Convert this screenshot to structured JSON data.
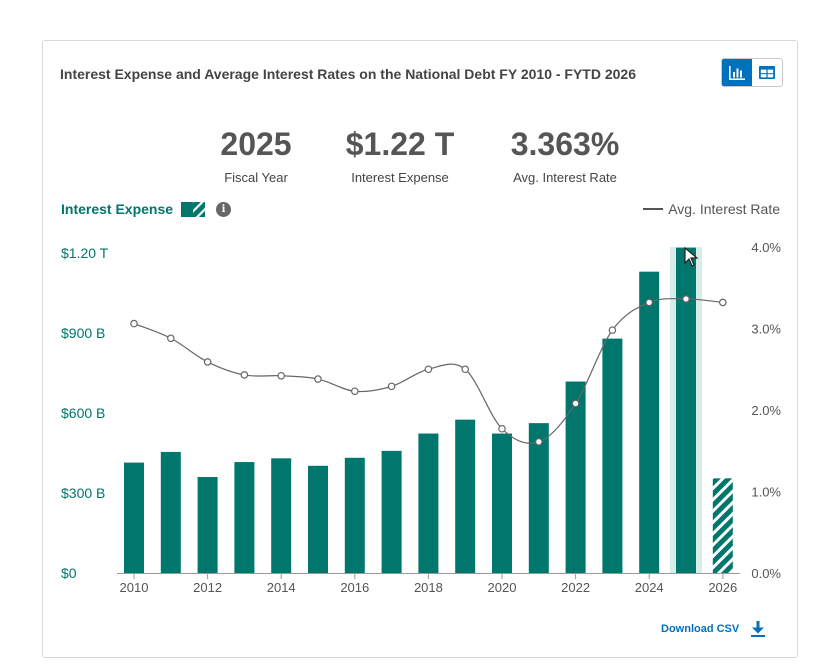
{
  "header": {
    "title": "Interest Expense and Average Interest Rates on the National Debt FY 2010 - FYTD 2026"
  },
  "view_toggle": {
    "active": "chart",
    "chart_icon": "bar-chart-icon",
    "table_icon": "table-icon"
  },
  "stats": {
    "year_value": "2025",
    "year_label": "Fiscal Year",
    "expense_value": "$1.22 T",
    "expense_label": "Interest Expense",
    "rate_value": "3.363%",
    "rate_label": "Avg. Interest Rate"
  },
  "legend": {
    "expense_label": "Interest Expense",
    "info_icon": "info-icon",
    "rate_label": "Avg. Interest Rate"
  },
  "download": {
    "label": "Download CSV",
    "icon": "download-icon"
  },
  "colors": {
    "bar": "#00766c",
    "highlight": "#d8ece8",
    "line": "#666666",
    "accent": "#0071bc"
  },
  "chart_data": {
    "type": "bar",
    "x": [
      2010,
      2011,
      2012,
      2013,
      2014,
      2015,
      2016,
      2017,
      2018,
      2019,
      2020,
      2021,
      2022,
      2023,
      2024,
      2025,
      2026
    ],
    "x_tick_labels": [
      "2010",
      "2012",
      "2014",
      "2016",
      "2018",
      "2020",
      "2022",
      "2024",
      "2026"
    ],
    "series": [
      {
        "name": "Interest Expense",
        "axis": "left",
        "values": [
          414,
          454,
          360,
          416,
          430,
          402,
          432,
          458,
          523,
          575,
          523,
          562,
          718,
          879,
          1130,
          1220,
          355
        ],
        "partial_year": 2026
      },
      {
        "name": "Avg. Interest Rate",
        "axis": "right",
        "type": "line",
        "values": [
          3.06,
          2.88,
          2.59,
          2.43,
          2.42,
          2.38,
          2.23,
          2.29,
          2.5,
          2.5,
          1.77,
          1.61,
          2.08,
          2.98,
          3.32,
          3.363,
          3.32
        ]
      }
    ],
    "left_ticks": [
      "$0",
      "$300 B",
      "$600 B",
      "$900 B",
      "$1.20 T"
    ],
    "left_tick_values": [
      0,
      300,
      600,
      900,
      1200
    ],
    "right_ticks": [
      "0.0%",
      "1.0%",
      "2.0%",
      "3.0%",
      "4.0%"
    ],
    "right_tick_values": [
      0,
      1,
      2,
      3,
      4
    ],
    "ylim_left": [
      0,
      1200
    ],
    "ylim_right": [
      0,
      4
    ],
    "highlighted_year": 2025,
    "grid": false
  }
}
